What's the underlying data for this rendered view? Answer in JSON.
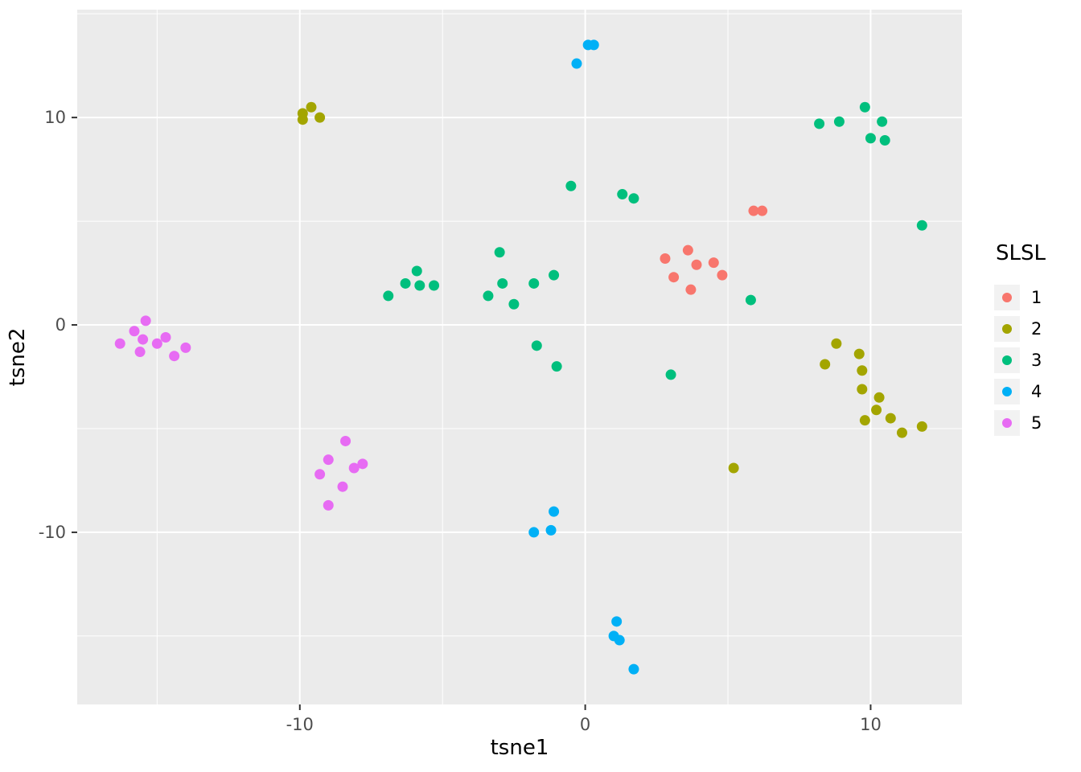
{
  "figure": {
    "background": "#FFFFFF"
  },
  "chart_data": {
    "type": "scatter",
    "title": "",
    "xlabel": "tsne1",
    "ylabel": "tsne2",
    "legend_title": "SLSL",
    "legend_position": "right",
    "grid": true,
    "panel_bg": "#EBEBEB",
    "grid_color": "#FFFFFF",
    "tick_color": "#333333",
    "tick_label_color": "#4D4D4D",
    "xlim": [
      -17.8,
      13.2
    ],
    "ylim": [
      -18.3,
      15.2
    ],
    "x_major_ticks": [
      -10,
      0,
      10
    ],
    "y_major_ticks": [
      -10,
      0,
      10
    ],
    "x_minor_ticks": [
      -15,
      -5,
      5
    ],
    "y_minor_ticks": [
      -15,
      -5,
      5,
      15
    ],
    "point_radius": 6.5,
    "series": [
      {
        "name": "1",
        "color": "#F8766D",
        "points": [
          [
            2.8,
            3.2
          ],
          [
            3.6,
            3.6
          ],
          [
            3.9,
            2.9
          ],
          [
            3.1,
            2.3
          ],
          [
            4.5,
            3.0
          ],
          [
            3.7,
            1.7
          ],
          [
            4.8,
            2.4
          ],
          [
            5.9,
            5.5
          ],
          [
            6.2,
            5.5
          ]
        ]
      },
      {
        "name": "2",
        "color": "#A3A500",
        "points": [
          [
            -9.9,
            10.2
          ],
          [
            -9.6,
            10.5
          ],
          [
            -9.3,
            10.0
          ],
          [
            -9.9,
            9.9
          ],
          [
            8.4,
            -1.9
          ],
          [
            8.8,
            -0.9
          ],
          [
            9.6,
            -1.4
          ],
          [
            9.7,
            -2.2
          ],
          [
            9.7,
            -3.1
          ],
          [
            10.3,
            -3.5
          ],
          [
            10.2,
            -4.1
          ],
          [
            9.8,
            -4.6
          ],
          [
            10.7,
            -4.5
          ],
          [
            11.1,
            -5.2
          ],
          [
            11.8,
            -4.9
          ],
          [
            5.2,
            -6.9
          ]
        ]
      },
      {
        "name": "3",
        "color": "#00BF7D",
        "points": [
          [
            -6.9,
            1.4
          ],
          [
            -6.3,
            2.0
          ],
          [
            -5.9,
            2.6
          ],
          [
            -5.8,
            1.9
          ],
          [
            -5.3,
            1.9
          ],
          [
            -3.4,
            1.4
          ],
          [
            -3.0,
            3.5
          ],
          [
            -2.9,
            2.0
          ],
          [
            -2.5,
            1.0
          ],
          [
            -1.8,
            2.0
          ],
          [
            -1.1,
            2.4
          ],
          [
            -0.5,
            6.7
          ],
          [
            1.3,
            6.3
          ],
          [
            1.7,
            6.1
          ],
          [
            -1.7,
            -1.0
          ],
          [
            -1.0,
            -2.0
          ],
          [
            3.0,
            -2.4
          ],
          [
            5.8,
            1.2
          ],
          [
            8.2,
            9.7
          ],
          [
            8.9,
            9.8
          ],
          [
            9.8,
            10.5
          ],
          [
            10.0,
            9.0
          ],
          [
            10.4,
            9.8
          ],
          [
            10.5,
            8.9
          ],
          [
            11.8,
            4.8
          ]
        ]
      },
      {
        "name": "4",
        "color": "#00B0F6",
        "points": [
          [
            -0.3,
            12.6
          ],
          [
            0.1,
            13.5
          ],
          [
            0.3,
            13.5
          ],
          [
            -1.8,
            -10.0
          ],
          [
            -1.2,
            -9.9
          ],
          [
            -1.1,
            -9.0
          ],
          [
            1.1,
            -14.3
          ],
          [
            1.0,
            -15.0
          ],
          [
            1.2,
            -15.2
          ],
          [
            1.7,
            -16.6
          ]
        ]
      },
      {
        "name": "5",
        "color": "#E76BF3",
        "points": [
          [
            -16.3,
            -0.9
          ],
          [
            -15.8,
            -0.3
          ],
          [
            -15.4,
            0.2
          ],
          [
            -15.5,
            -0.7
          ],
          [
            -15.0,
            -0.9
          ],
          [
            -15.6,
            -1.3
          ],
          [
            -14.7,
            -0.6
          ],
          [
            -14.4,
            -1.5
          ],
          [
            -14.0,
            -1.1
          ],
          [
            -8.4,
            -5.6
          ],
          [
            -9.0,
            -6.5
          ],
          [
            -8.1,
            -6.9
          ],
          [
            -9.3,
            -7.2
          ],
          [
            -7.8,
            -6.7
          ],
          [
            -8.5,
            -7.8
          ],
          [
            -9.0,
            -8.7
          ]
        ]
      }
    ]
  }
}
